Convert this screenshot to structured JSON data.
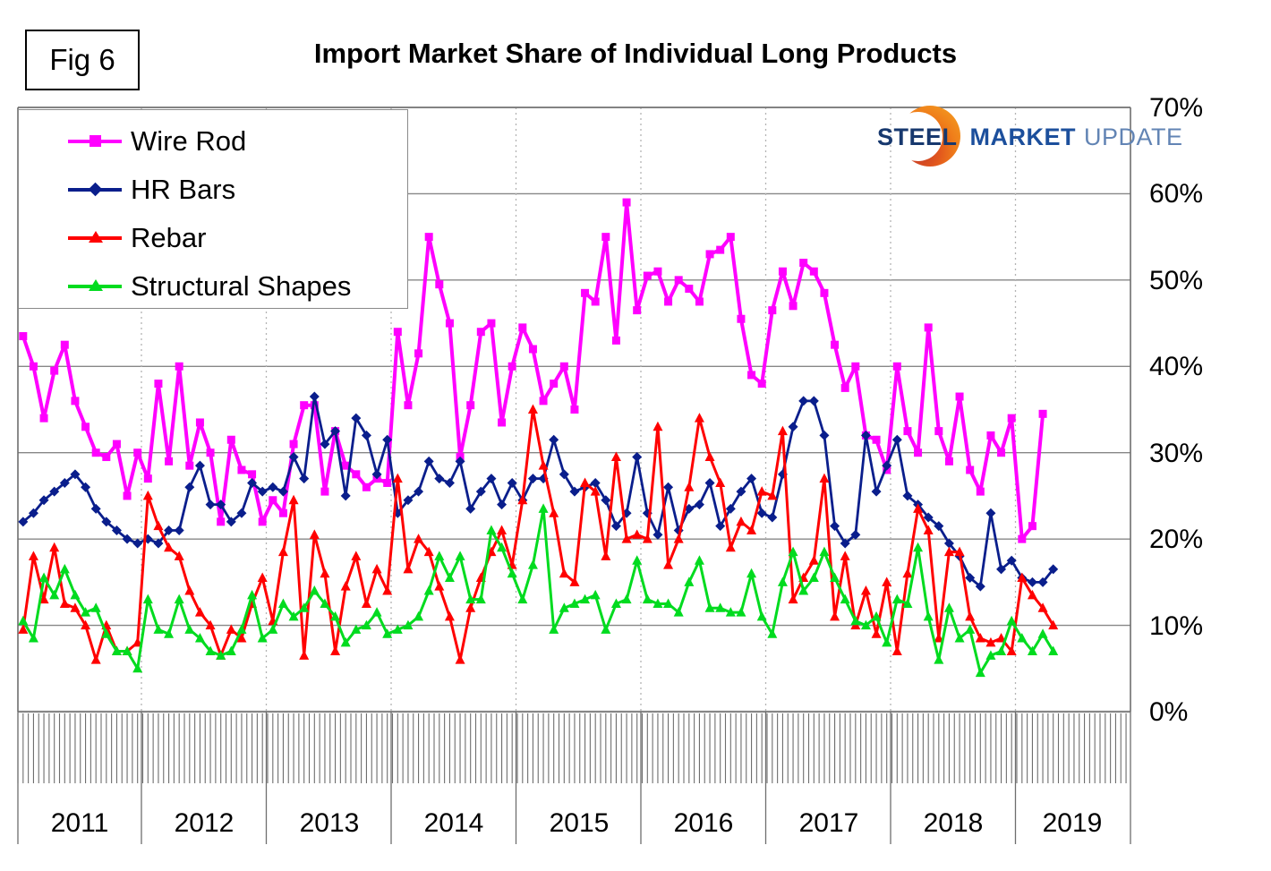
{
  "figure_label": "Fig 6",
  "title": "Import Market Share of Individual Long Products",
  "logo": {
    "steel": "STEEL",
    "market": "MARKET",
    "update": "UPDATE"
  },
  "y_axis": {
    "labels": [
      "70%",
      "60%",
      "50%",
      "40%",
      "30%",
      "20%",
      "10%",
      "0%"
    ],
    "min": 0,
    "max": 70,
    "step": 10
  },
  "x_axis": {
    "years": [
      "2011",
      "2012",
      "2013",
      "2014",
      "2015",
      "2016",
      "2017",
      "2018",
      "2019"
    ]
  },
  "chart_data": {
    "type": "line",
    "title": "Import Market Share of Individual Long Products",
    "xlabel": "",
    "ylabel": "",
    "unit": "%",
    "x_start": "2011-01",
    "x_frequency": "monthly",
    "ylim": [
      0,
      70
    ],
    "grid": true,
    "legend_position": "top-left",
    "series": [
      {
        "name": "Wire Rod",
        "color": "#FF00FF",
        "marker": "square",
        "values": [
          43.5,
          40,
          34,
          39.5,
          42.5,
          36,
          33,
          30,
          29.5,
          31,
          25,
          30,
          27,
          38,
          29,
          40,
          28.5,
          33.5,
          30,
          22,
          31.5,
          28,
          27.5,
          22,
          24.5,
          23,
          31,
          35.5,
          35.5,
          25.5,
          32.5,
          28.5,
          27.5,
          26,
          27,
          26.5,
          44,
          35.5,
          41.5,
          55,
          49.5,
          45,
          29.5,
          35.5,
          44,
          45,
          33.5,
          40,
          44.5,
          42,
          36,
          38,
          40,
          35,
          48.5,
          47.5,
          55,
          43,
          59,
          46.5,
          50.5,
          51,
          47.5,
          50,
          49,
          47.5,
          53,
          53.5,
          55,
          45.5,
          39,
          38,
          46.5,
          51,
          47,
          52,
          51,
          48.5,
          42.5,
          37.5,
          40,
          32,
          31.5,
          28,
          40,
          32.5,
          30,
          44.5,
          32.5,
          29,
          36.5,
          28,
          25.5,
          32,
          30,
          34,
          20,
          21.5,
          34.5,
          null
        ]
      },
      {
        "name": "HR Bars",
        "color": "#0A1E8C",
        "marker": "diamond",
        "values": [
          22,
          23,
          24.5,
          25.5,
          26.5,
          27.5,
          26,
          23.5,
          22,
          21,
          20,
          19.5,
          20,
          19.5,
          21,
          21,
          26,
          28.5,
          24,
          24,
          22,
          23,
          26.5,
          25.5,
          26,
          25.5,
          29.5,
          27,
          36.5,
          31,
          32.5,
          25,
          34,
          32,
          27.5,
          31.5,
          23,
          24.5,
          25.5,
          29,
          27,
          26.5,
          29,
          23.5,
          25.5,
          27,
          24,
          26.5,
          24.5,
          27,
          27,
          31.5,
          27.5,
          25.5,
          26,
          26.5,
          24.5,
          21.5,
          23,
          29.5,
          23,
          20.5,
          26,
          21,
          23.5,
          24,
          26.5,
          21.5,
          23.5,
          25.5,
          27,
          23,
          22.5,
          27.5,
          33,
          36,
          36,
          32,
          21.5,
          19.5,
          20.5,
          32,
          25.5,
          28.5,
          31.5,
          25,
          24,
          22.5,
          21.5,
          19.5,
          18,
          15.5,
          14.5,
          23,
          16.5,
          17.5,
          15.5,
          15,
          15,
          16.5
        ]
      },
      {
        "name": "Rebar",
        "color": "#FF0000",
        "marker": "triangle",
        "values": [
          9.5,
          18,
          13,
          19,
          12.5,
          12,
          10,
          6,
          10,
          7,
          7,
          8,
          25,
          21.5,
          19,
          18,
          14,
          11.5,
          10,
          6.5,
          9.5,
          8.5,
          12.5,
          15.5,
          10.5,
          18.5,
          24.5,
          6.5,
          20.5,
          16,
          7,
          14.5,
          18,
          12.5,
          16.5,
          14,
          27,
          16.5,
          20,
          18.5,
          14.5,
          11,
          6,
          12,
          15.5,
          18.5,
          21,
          17,
          24.5,
          35,
          28.5,
          23,
          16,
          15,
          26.5,
          25.5,
          18,
          29.5,
          20,
          20.5,
          20,
          33,
          17,
          20,
          26,
          34,
          29.5,
          26.5,
          19,
          22,
          21,
          25.5,
          25,
          32.5,
          13,
          15.5,
          17.5,
          27,
          11,
          18,
          10,
          14,
          9,
          15,
          7,
          16,
          23.5,
          21,
          8.5,
          18.5,
          18.5,
          11,
          8.5,
          8,
          8.5,
          7,
          15.5,
          13.5,
          12,
          10
        ]
      },
      {
        "name": "Structural Shapes",
        "color": "#00DB1F",
        "marker": "triangle",
        "values": [
          10.5,
          8.5,
          15.5,
          13.5,
          16.5,
          13.5,
          11.5,
          12,
          9,
          7,
          7,
          5,
          13,
          9.5,
          9,
          13,
          9.5,
          8.5,
          7,
          6.5,
          7,
          9.5,
          13.5,
          8.5,
          9.5,
          12.5,
          11,
          12,
          14,
          12.5,
          11,
          8,
          9.5,
          10,
          11.5,
          9,
          9.5,
          10,
          11,
          14,
          18,
          15.5,
          18,
          13,
          13,
          21,
          19,
          16,
          13,
          17,
          23.5,
          9.5,
          12,
          12.5,
          13,
          13.5,
          9.5,
          12.5,
          13,
          17.5,
          13,
          12.5,
          12.5,
          11.5,
          15,
          17.5,
          12,
          12,
          11.5,
          11.5,
          16,
          11,
          9,
          15,
          18.5,
          14,
          15.5,
          18.5,
          15.5,
          13,
          10.5,
          10,
          11,
          8,
          13,
          12.5,
          19,
          11,
          6,
          12,
          8.5,
          9.5,
          4.5,
          6.5,
          7,
          10.5,
          8.5,
          7,
          9,
          7
        ]
      }
    ]
  }
}
